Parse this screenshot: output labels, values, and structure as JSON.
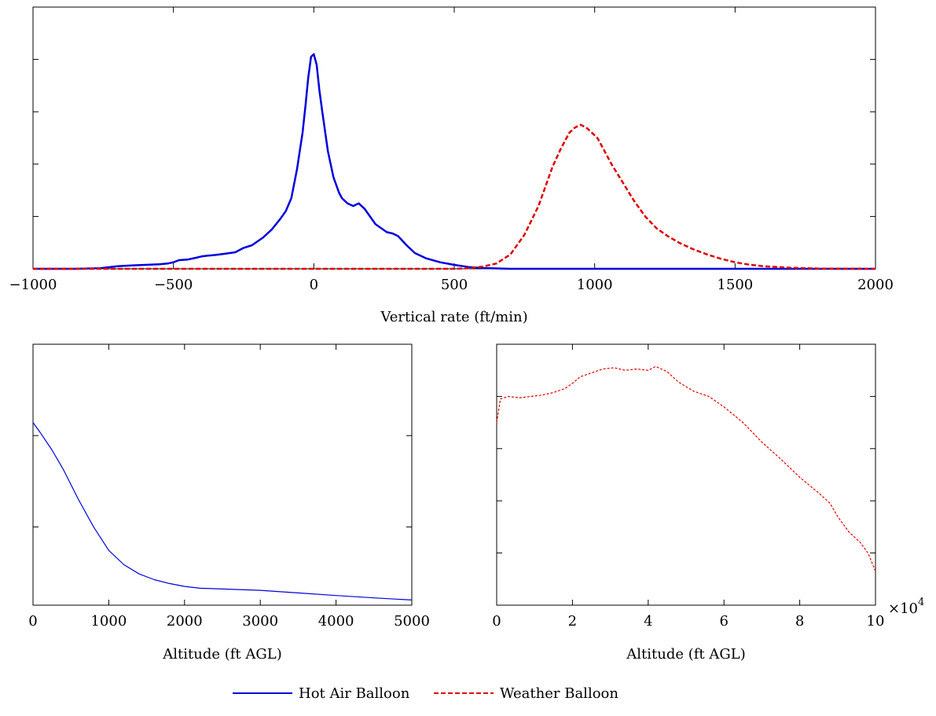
{
  "chart_data": [
    {
      "type": "line",
      "xlabel": "Vertical rate (ft/min)",
      "xlim": [
        -1000,
        2000
      ],
      "ylim": [
        0,
        1.0
      ],
      "xticks": [
        -1000,
        -500,
        0,
        500,
        1000,
        1500,
        2000
      ],
      "xtick_labels": [
        "−1000",
        "−500",
        "0",
        "500",
        "1000",
        "1500",
        "2000"
      ],
      "yticks": [
        0.2,
        0.4,
        0.6,
        0.8
      ],
      "series": [
        {
          "name": "Hot Air Balloon",
          "color": "#0000dd",
          "style": "solid",
          "x": [
            -1000,
            -850,
            -760,
            -700,
            -650,
            -600,
            -550,
            -520,
            -500,
            -480,
            -450,
            -420,
            -400,
            -380,
            -350,
            -320,
            -300,
            -280,
            -250,
            -220,
            -200,
            -180,
            -150,
            -120,
            -100,
            -80,
            -60,
            -40,
            -30,
            -20,
            -10,
            0,
            10,
            20,
            30,
            50,
            70,
            90,
            100,
            120,
            140,
            160,
            180,
            200,
            220,
            240,
            260,
            280,
            300,
            330,
            360,
            400,
            450,
            500,
            550,
            600,
            700,
            1000,
            1500,
            2000
          ],
          "y": [
            0.0,
            0.0,
            0.002,
            0.01,
            0.013,
            0.015,
            0.017,
            0.02,
            0.025,
            0.033,
            0.035,
            0.042,
            0.047,
            0.05,
            0.053,
            0.057,
            0.06,
            0.063,
            0.08,
            0.09,
            0.105,
            0.12,
            0.15,
            0.19,
            0.22,
            0.27,
            0.38,
            0.52,
            0.62,
            0.73,
            0.81,
            0.82,
            0.78,
            0.68,
            0.6,
            0.45,
            0.35,
            0.29,
            0.27,
            0.25,
            0.24,
            0.25,
            0.23,
            0.2,
            0.17,
            0.155,
            0.14,
            0.135,
            0.125,
            0.09,
            0.06,
            0.04,
            0.025,
            0.015,
            0.007,
            0.003,
            0.0,
            0.0,
            0.0,
            0.0
          ]
        },
        {
          "name": "Weather Balloon",
          "color": "#dd0000",
          "style": "dashed",
          "x": [
            -1000,
            0,
            500,
            550,
            600,
            650,
            700,
            750,
            800,
            850,
            880,
            910,
            930,
            950,
            970,
            990,
            1010,
            1030,
            1060,
            1100,
            1140,
            1180,
            1220,
            1260,
            1300,
            1350,
            1400,
            1450,
            1500,
            1550,
            1600,
            1700,
            1800,
            2000
          ],
          "y": [
            0.0,
            0.0,
            0.0,
            0.002,
            0.008,
            0.02,
            0.055,
            0.13,
            0.24,
            0.39,
            0.46,
            0.52,
            0.54,
            0.55,
            0.54,
            0.52,
            0.5,
            0.46,
            0.4,
            0.33,
            0.26,
            0.2,
            0.155,
            0.125,
            0.1,
            0.075,
            0.055,
            0.038,
            0.025,
            0.016,
            0.01,
            0.004,
            0.001,
            0.0
          ]
        }
      ]
    },
    {
      "type": "line",
      "xlabel": "Altitude (ft AGL)",
      "xlim": [
        0,
        5000
      ],
      "ylim": [
        0,
        1.0
      ],
      "xticks": [
        0,
        1000,
        2000,
        3000,
        4000,
        5000
      ],
      "xtick_labels": [
        "0",
        "1000",
        "2000",
        "3000",
        "4000",
        "5000"
      ],
      "yticks": [
        0.3,
        0.65
      ],
      "series": [
        {
          "name": "Hot Air Balloon",
          "color": "#0000dd",
          "style": "solid",
          "x": [
            0,
            100,
            250,
            400,
            600,
            800,
            1000,
            1200,
            1400,
            1600,
            1800,
            2000,
            2200,
            2500,
            3000,
            3500,
            4000,
            4500,
            5000
          ],
          "y": [
            0.7,
            0.66,
            0.595,
            0.52,
            0.405,
            0.3,
            0.21,
            0.155,
            0.12,
            0.098,
            0.083,
            0.072,
            0.065,
            0.062,
            0.057,
            0.047,
            0.037,
            0.028,
            0.02
          ]
        }
      ]
    },
    {
      "type": "line",
      "xlabel": "Altitude (ft AGL)",
      "x_multiplier": "×10",
      "x_multiplier_exp": "4",
      "xlim": [
        0,
        10
      ],
      "ylim": [
        0,
        1.0
      ],
      "xticks": [
        0,
        2,
        4,
        6,
        8,
        10
      ],
      "xtick_labels": [
        "0",
        "2",
        "4",
        "6",
        "8",
        "10"
      ],
      "yticks": [
        0.2,
        0.4,
        0.6,
        0.8
      ],
      "series": [
        {
          "name": "Weather Balloon",
          "color": "#dd0000",
          "style": "dashed",
          "x": [
            0,
            0.1,
            0.3,
            0.6,
            0.9,
            1.2,
            1.5,
            1.8,
            2.0,
            2.2,
            2.5,
            2.8,
            3.1,
            3.4,
            3.7,
            4.0,
            4.2,
            4.5,
            4.8,
            5.2,
            5.6,
            6.0,
            6.5,
            7.0,
            7.5,
            8.0,
            8.5,
            8.8,
            9.0,
            9.3,
            9.6,
            9.8,
            10.0
          ],
          "y": [
            0.7,
            0.79,
            0.8,
            0.795,
            0.8,
            0.805,
            0.815,
            0.83,
            0.85,
            0.875,
            0.89,
            0.905,
            0.91,
            0.9,
            0.905,
            0.9,
            0.915,
            0.895,
            0.855,
            0.82,
            0.8,
            0.76,
            0.7,
            0.625,
            0.56,
            0.49,
            0.43,
            0.39,
            0.34,
            0.28,
            0.24,
            0.2,
            0.13
          ]
        }
      ]
    }
  ],
  "legend": [
    {
      "label": "Hot Air Balloon",
      "color": "#0000dd",
      "style": "solid"
    },
    {
      "label": "Weather Balloon",
      "color": "#dd0000",
      "style": "dashed"
    }
  ]
}
